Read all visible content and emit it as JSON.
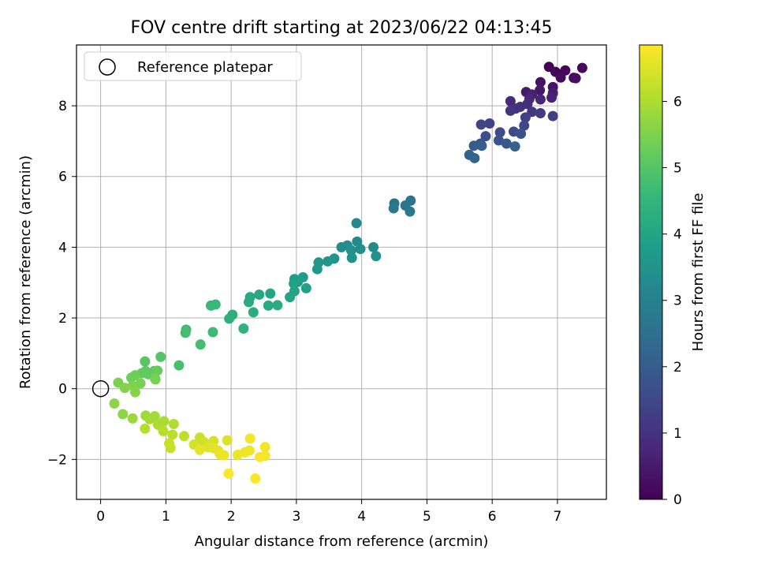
{
  "chart_data": {
    "type": "scatter",
    "title": "FOV centre drift starting at 2023/06/22 04:13:45",
    "xlabel": "Angular distance from reference (arcmin)",
    "ylabel": "Rotation from reference (arcmin)",
    "xlim": [
      -0.37,
      7.75
    ],
    "ylim": [
      -3.13,
      9.72
    ],
    "xticks": [
      0,
      1,
      2,
      3,
      4,
      5,
      6,
      7
    ],
    "yticks": [
      -2,
      0,
      2,
      4,
      6,
      8
    ],
    "ytick_labels": [
      "−2",
      "0",
      "2",
      "4",
      "6",
      "8"
    ],
    "grid": true,
    "legend": {
      "placement": "top-left",
      "entries": [
        "Reference platepar"
      ]
    },
    "reference_point": {
      "name": "Reference platepar",
      "x": 0,
      "y": 0,
      "marker": "open-circle"
    },
    "colorbar": {
      "label": "Hours from first FF file",
      "range": [
        0,
        6.85
      ],
      "ticks": [
        0,
        1,
        2,
        3,
        4,
        5,
        6
      ],
      "colormap": "viridis",
      "colors": [
        "#440154",
        "#482878",
        "#3e4989",
        "#31688e",
        "#26828e",
        "#1f9e89",
        "#35b779",
        "#6ece58",
        "#b5de2b",
        "#fde725"
      ]
    },
    "series": [
      {
        "marker": "filled-circle",
        "points": [
          [
            6.87,
            9.1,
            0.02
          ],
          [
            6.97,
            8.96,
            0.06
          ],
          [
            7.12,
            9.0,
            0.1
          ],
          [
            7.38,
            9.07,
            0.14
          ],
          [
            7.05,
            8.8,
            0.18
          ],
          [
            7.25,
            8.79,
            0.22
          ],
          [
            7.28,
            8.78,
            0.26
          ],
          [
            6.74,
            8.67,
            0.31
          ],
          [
            6.93,
            8.53,
            0.36
          ],
          [
            6.73,
            8.44,
            0.42
          ],
          [
            6.52,
            8.39,
            0.48
          ],
          [
            6.93,
            8.36,
            0.54
          ],
          [
            6.61,
            8.32,
            0.6
          ],
          [
            6.91,
            8.23,
            0.66
          ],
          [
            6.74,
            8.18,
            0.72
          ],
          [
            6.57,
            8.19,
            0.78
          ],
          [
            6.28,
            8.13,
            0.84
          ],
          [
            6.54,
            8.05,
            0.9
          ],
          [
            6.43,
            7.97,
            0.96
          ],
          [
            6.36,
            7.92,
            1.02
          ],
          [
            6.28,
            7.86,
            1.08
          ],
          [
            6.61,
            7.83,
            1.14
          ],
          [
            6.74,
            7.79,
            1.2
          ],
          [
            6.93,
            7.71,
            1.26
          ],
          [
            6.51,
            7.67,
            1.32
          ],
          [
            5.96,
            7.5,
            1.38
          ],
          [
            5.83,
            7.47,
            1.44
          ],
          [
            6.49,
            7.44,
            1.5
          ],
          [
            6.33,
            7.27,
            1.56
          ],
          [
            6.12,
            7.25,
            1.62
          ],
          [
            5.9,
            7.14,
            1.68
          ],
          [
            6.44,
            7.21,
            1.74
          ],
          [
            6.1,
            7.02,
            1.8
          ],
          [
            6.22,
            6.93,
            1.86
          ],
          [
            5.82,
            6.93,
            1.92
          ],
          [
            5.72,
            6.87,
            1.98
          ],
          [
            5.84,
            6.87,
            2.04
          ],
          [
            6.35,
            6.85,
            2.1
          ],
          [
            5.65,
            6.61,
            2.16
          ],
          [
            5.73,
            6.52,
            2.22
          ],
          [
            4.75,
            5.32,
            2.6
          ],
          [
            4.5,
            5.24,
            2.64
          ],
          [
            4.67,
            5.18,
            2.68
          ],
          [
            4.49,
            5.1,
            2.72
          ],
          [
            4.74,
            5.01,
            2.76
          ],
          [
            3.92,
            4.68,
            3.2
          ],
          [
            3.93,
            4.16,
            3.24
          ],
          [
            4.18,
            4.0,
            3.28
          ],
          [
            3.78,
            4.05,
            3.32
          ],
          [
            3.69,
            4.0,
            3.36
          ],
          [
            3.98,
            3.95,
            3.4
          ],
          [
            3.84,
            3.91,
            3.44
          ],
          [
            4.22,
            3.75,
            3.48
          ],
          [
            3.85,
            3.7,
            3.52
          ],
          [
            3.58,
            3.68,
            3.56
          ],
          [
            3.48,
            3.6,
            3.6
          ],
          [
            3.34,
            3.57,
            3.64
          ],
          [
            3.32,
            3.38,
            3.68
          ],
          [
            3.1,
            3.15,
            3.74
          ],
          [
            2.97,
            3.1,
            3.78
          ],
          [
            3.02,
            3.02,
            3.82
          ],
          [
            2.96,
            2.97,
            3.86
          ],
          [
            3.15,
            2.84,
            3.9
          ],
          [
            2.97,
            2.76,
            3.94
          ],
          [
            2.9,
            2.59,
            3.98
          ],
          [
            2.6,
            2.69,
            4.02
          ],
          [
            2.43,
            2.66,
            4.06
          ],
          [
            2.29,
            2.59,
            4.1
          ],
          [
            2.27,
            2.45,
            4.14
          ],
          [
            2.57,
            2.35,
            4.18
          ],
          [
            2.71,
            2.36,
            4.22
          ],
          [
            2.34,
            2.16,
            4.26
          ],
          [
            2.02,
            2.09,
            4.3
          ],
          [
            1.97,
            1.98,
            4.34
          ],
          [
            2.19,
            1.7,
            4.38
          ],
          [
            1.76,
            2.38,
            4.6
          ],
          [
            1.69,
            2.35,
            4.64
          ],
          [
            1.72,
            1.6,
            4.68
          ],
          [
            1.31,
            1.67,
            4.72
          ],
          [
            1.3,
            1.58,
            4.76
          ],
          [
            1.53,
            1.25,
            4.8
          ],
          [
            1.2,
            0.66,
            4.84
          ],
          [
            0.92,
            0.9,
            5.0
          ],
          [
            0.68,
            0.77,
            5.04
          ],
          [
            0.82,
            0.5,
            5.08
          ],
          [
            0.69,
            0.5,
            5.12
          ],
          [
            0.73,
            0.41,
            5.16
          ],
          [
            0.63,
            0.44,
            5.2
          ],
          [
            0.87,
            0.51,
            5.24
          ],
          [
            0.53,
            0.38,
            5.28
          ],
          [
            0.47,
            0.31,
            5.32
          ],
          [
            0.83,
            0.3,
            5.36
          ],
          [
            0.84,
            0.26,
            5.4
          ],
          [
            0.61,
            0.15,
            5.44
          ],
          [
            0.27,
            0.17,
            5.48
          ],
          [
            0.49,
            0.08,
            5.52
          ],
          [
            0.37,
            0.02,
            5.56
          ],
          [
            0.53,
            -0.1,
            5.6
          ],
          [
            0.21,
            -0.42,
            5.64
          ],
          [
            0.34,
            -0.72,
            5.68
          ],
          [
            0.49,
            -0.84,
            5.8
          ],
          [
            0.69,
            -0.76,
            5.84
          ],
          [
            0.83,
            -0.78,
            5.88
          ],
          [
            0.75,
            -0.86,
            5.92
          ],
          [
            0.97,
            -0.92,
            5.96
          ],
          [
            0.88,
            -1.02,
            6.0
          ],
          [
            1.12,
            -1.0,
            6.04
          ],
          [
            0.68,
            -1.13,
            6.08
          ],
          [
            0.96,
            -1.2,
            6.12
          ],
          [
            1.1,
            -1.3,
            6.16
          ],
          [
            1.28,
            -1.34,
            6.2
          ],
          [
            1.05,
            -1.55,
            6.24
          ],
          [
            1.07,
            -1.68,
            6.28
          ],
          [
            1.52,
            -1.38,
            6.32
          ],
          [
            1.58,
            -1.5,
            6.36
          ],
          [
            1.43,
            -1.58,
            6.4
          ],
          [
            1.73,
            -1.48,
            6.44
          ],
          [
            1.94,
            -1.46,
            6.48
          ],
          [
            1.65,
            -1.66,
            6.52
          ],
          [
            1.73,
            -1.68,
            6.56
          ],
          [
            1.52,
            -1.73,
            6.6
          ],
          [
            1.8,
            -1.75,
            6.62
          ],
          [
            1.83,
            -1.86,
            6.64
          ],
          [
            1.89,
            -1.88,
            6.66
          ],
          [
            2.1,
            -1.87,
            6.68
          ],
          [
            2.28,
            -1.75,
            6.7
          ],
          [
            2.21,
            -1.8,
            6.72
          ],
          [
            2.29,
            -1.41,
            6.74
          ],
          [
            2.52,
            -1.65,
            6.76
          ],
          [
            2.52,
            -1.9,
            6.78
          ],
          [
            2.44,
            -1.93,
            6.8
          ],
          [
            1.96,
            -2.4,
            6.82
          ],
          [
            2.37,
            -2.54,
            6.84
          ]
        ]
      }
    ]
  }
}
